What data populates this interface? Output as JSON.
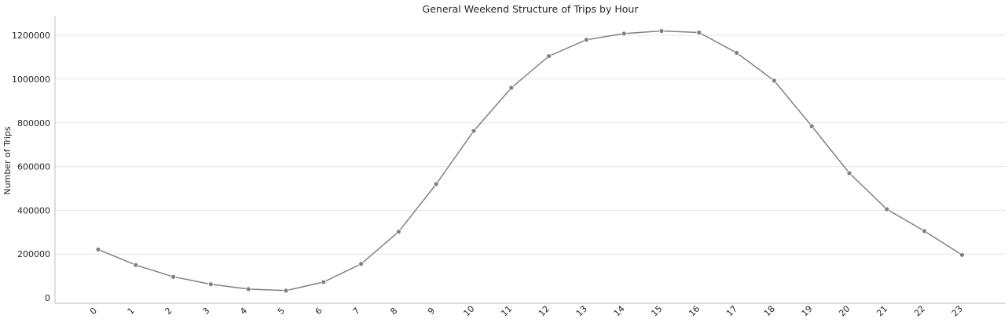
{
  "chart_data": {
    "type": "line",
    "title": "General Weekend Structure of Trips by Hour",
    "xlabel": "",
    "ylabel": "Number of Trips",
    "x": [
      "0",
      "1",
      "2",
      "3",
      "4",
      "5",
      "6",
      "7",
      "8",
      "9",
      "10",
      "11",
      "12",
      "13",
      "14",
      "15",
      "16",
      "17",
      "18",
      "19",
      "20",
      "21",
      "22",
      "23"
    ],
    "series": [
      {
        "values": [
          221000,
          150000,
          96000,
          62000,
          40000,
          33000,
          72000,
          155000,
          302000,
          520000,
          763000,
          960000,
          1105000,
          1180000,
          1208000,
          1220000,
          1213000,
          1120000,
          993000,
          785000,
          570000,
          405000,
          305000,
          196000
        ]
      }
    ],
    "yticks": [
      0,
      200000,
      400000,
      600000,
      800000,
      1000000,
      1200000
    ],
    "ytick_labels": [
      "0",
      "200000",
      "400000",
      "600000",
      "800000",
      "1000000",
      "1200000"
    ],
    "ylim": [
      -25000,
      1290000
    ],
    "grid": "horizontal",
    "legend": "none",
    "color": "#808080"
  }
}
